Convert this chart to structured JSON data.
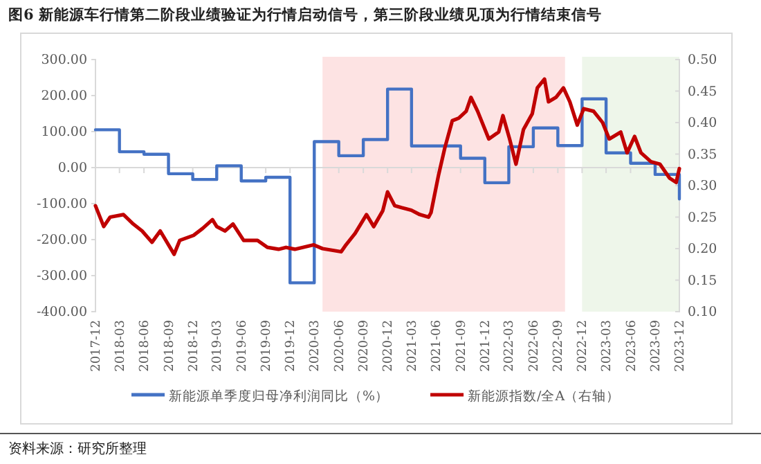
{
  "chart_data": {
    "type": "line",
    "title": "图6  新能源车行情第二阶段业绩验证为行情启动信号，第三阶段业绩见顶为行情结束信号",
    "annotations": [
      "资料来源：研究所整理"
    ],
    "xlim": [
      "2017-12",
      "2023-12"
    ],
    "xticks": [
      "2017-12",
      "2018-03",
      "2018-06",
      "2018-09",
      "2018-12",
      "2019-03",
      "2019-06",
      "2019-09",
      "2019-12",
      "2020-03",
      "2020-06",
      "2020-09",
      "2020-12",
      "2021-03",
      "2021-06",
      "2021-09",
      "2021-12",
      "2022-03",
      "2022-06",
      "2022-09",
      "2022-12",
      "2023-03",
      "2023-06",
      "2023-09",
      "2023-12"
    ],
    "ylim": [
      -400,
      300
    ],
    "yticks": [
      {
        "value": -400,
        "label": "-400.00"
      },
      {
        "value": -300,
        "label": "-300.00"
      },
      {
        "value": -200,
        "label": "-200.00"
      },
      {
        "value": -100,
        "label": "-100.00"
      },
      {
        "value": 0,
        "label": "0.00"
      },
      {
        "value": 100,
        "label": "100.00"
      },
      {
        "value": 200,
        "label": "200.00"
      },
      {
        "value": 300,
        "label": "300.00"
      }
    ],
    "y2lim": [
      0.1,
      0.5
    ],
    "y2ticks": [
      {
        "value": 0.1,
        "label": "0.10"
      },
      {
        "value": 0.15,
        "label": "0.15"
      },
      {
        "value": 0.2,
        "label": "0.20"
      },
      {
        "value": 0.25,
        "label": "0.25"
      },
      {
        "value": 0.3,
        "label": "0.30"
      },
      {
        "value": 0.35,
        "label": "0.35"
      },
      {
        "value": 0.4,
        "label": "0.40"
      },
      {
        "value": 0.45,
        "label": "0.45"
      },
      {
        "value": 0.5,
        "label": "0.50"
      }
    ],
    "bands": [
      {
        "axis": "x",
        "from": "2020-04-01",
        "to": "2022-09-28",
        "color": "#fde3e3"
      },
      {
        "axis": "x",
        "from": "2022-12-01",
        "to": "2023-12-01",
        "color": "#eef6ea"
      }
    ],
    "grid": false,
    "legend": "bottom",
    "series": [
      {
        "name": "新能源单季度归母净利润同比（%）",
        "type": "step",
        "color": "#4472c4",
        "x": [
          "2017-12",
          "2018-03",
          "2018-06",
          "2018-09",
          "2018-12",
          "2019-03",
          "2019-06",
          "2019-09",
          "2019-12",
          "2020-03",
          "2020-06",
          "2020-09",
          "2020-12",
          "2021-03",
          "2021-06",
          "2021-09",
          "2021-12",
          "2022-03",
          "2022-06",
          "2022-09",
          "2022-12",
          "2023-03",
          "2023-06",
          "2023-09",
          "2023-12"
        ],
        "values": [
          105,
          44,
          37,
          -17,
          -33,
          5,
          -37,
          -27,
          -320,
          72,
          33,
          78,
          218,
          60,
          60,
          26,
          -42,
          58,
          110,
          61,
          191,
          41,
          12,
          -19,
          -87
        ]
      },
      {
        "name": "新能源指数/全A（右轴）",
        "type": "line",
        "axis": "y2",
        "color": "#c00000",
        "x": [
          "2017-12-01",
          "2018-01-01",
          "2018-01-25",
          "2018-03-16",
          "2018-04-22",
          "2018-05-25",
          "2018-07-01",
          "2018-08-01",
          "2018-09-22",
          "2018-10-13",
          "2018-12-04",
          "2019-01-07",
          "2019-02-13",
          "2019-03-01",
          "2019-04-01",
          "2019-05-01",
          "2019-06-10",
          "2019-08-01",
          "2019-09-07",
          "2019-10-19",
          "2019-11-16",
          "2019-12-19",
          "2020-02-28",
          "2020-04-01",
          "2020-06-10",
          "2020-06-28",
          "2020-08-01",
          "2020-09-13",
          "2020-10-10",
          "2020-11-13",
          "2020-12-01",
          "2020-12-28",
          "2021-01-22",
          "2021-02-28",
          "2021-04-01",
          "2021-05-04",
          "2021-05-13",
          "2021-06-10",
          "2021-07-04",
          "2021-08-01",
          "2021-08-25",
          "2021-09-22",
          "2021-10-10",
          "2021-11-04",
          "2021-12-16",
          "2022-01-22",
          "2022-02-07",
          "2022-03-04",
          "2022-03-28",
          "2022-04-25",
          "2022-05-28",
          "2022-06-16",
          "2022-07-13",
          "2022-07-28",
          "2022-08-25",
          "2022-09-22",
          "2022-10-16",
          "2022-11-13",
          "2022-12-07",
          "2023-01-13",
          "2023-02-16",
          "2023-03-13",
          "2023-04-25",
          "2023-05-19",
          "2023-06-16",
          "2023-07-10",
          "2023-08-16",
          "2023-09-19",
          "2023-10-25",
          "2023-11-19",
          "2023-12-01"
        ],
        "values": [
          0.268,
          0.235,
          0.25,
          0.254,
          0.239,
          0.228,
          0.21,
          0.228,
          0.191,
          0.213,
          0.221,
          0.232,
          0.246,
          0.235,
          0.228,
          0.239,
          0.213,
          0.213,
          0.202,
          0.199,
          0.202,
          0.199,
          0.206,
          0.2,
          0.195,
          0.206,
          0.224,
          0.254,
          0.235,
          0.26,
          0.29,
          0.268,
          0.265,
          0.261,
          0.254,
          0.25,
          0.257,
          0.316,
          0.36,
          0.403,
          0.407,
          0.418,
          0.44,
          0.418,
          0.374,
          0.385,
          0.411,
          0.374,
          0.334,
          0.389,
          0.414,
          0.455,
          0.469,
          0.433,
          0.44,
          0.455,
          0.433,
          0.396,
          0.422,
          0.418,
          0.4,
          0.374,
          0.385,
          0.352,
          0.378,
          0.352,
          0.338,
          0.334,
          0.312,
          0.305,
          0.327
        ]
      }
    ]
  }
}
